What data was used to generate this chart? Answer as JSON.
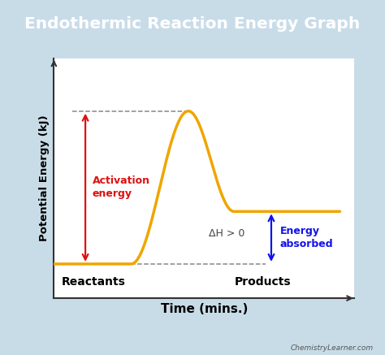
{
  "title": "Endothermic Reaction Energy Graph",
  "title_bg_color": "#2196c8",
  "title_text_color": "#ffffff",
  "bg_color": "#c8dce8",
  "plot_bg_color": "#ffffff",
  "curve_color": "#f0a500",
  "curve_lw": 2.5,
  "xlabel": "Time (mins.)",
  "ylabel": "Potential Energy (kJ)",
  "reactant_level": 0.15,
  "product_level": 0.38,
  "peak_level": 0.82,
  "dh_label": "ΔH > 0",
  "activation_label": "Activation\nenergy",
  "energy_absorbed_label": "Energy\nabsorbed",
  "reactants_label": "Reactants",
  "products_label": "Products",
  "watermark": "ChemistryLearner.com",
  "arrow_color_red": "#dd1111",
  "arrow_color_blue": "#1111ee",
  "dash_color": "#888888",
  "spine_color": "#333333"
}
